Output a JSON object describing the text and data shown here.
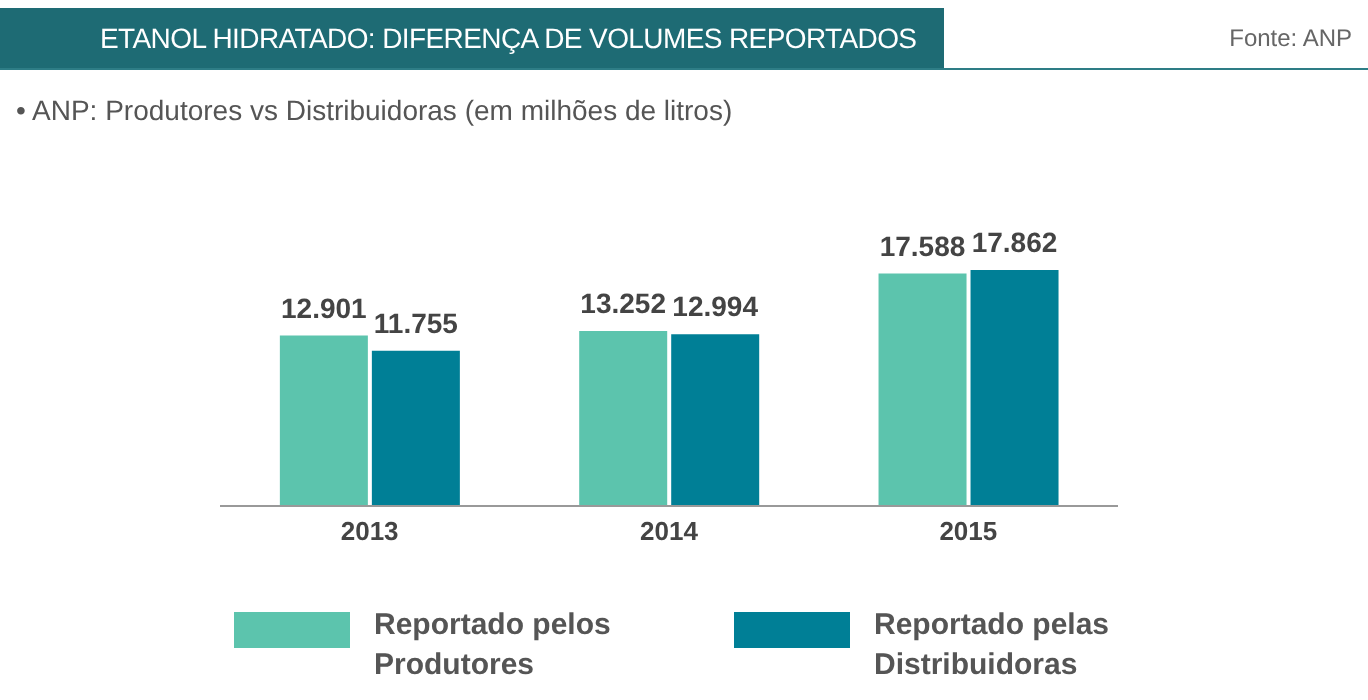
{
  "chart_data": {
    "type": "bar",
    "title": "ETANOL HIDRATADO: DIFERENÇA DE VOLUMES REPORTADOS",
    "subtitle": "• ANP: Produtores vs Distribuidoras (em milhões de litros)",
    "annotations": [
      "Fonte: ANP"
    ],
    "categories": [
      "2013",
      "2014",
      "2015"
    ],
    "series": [
      {
        "name": "Reportado pelos Produtores",
        "color": "#5cc4ad",
        "values": [
          12901,
          13252,
          17588
        ],
        "value_labels": [
          "12.901",
          "13.252",
          "17.588"
        ]
      },
      {
        "name": "Reportado pelas Distribuidoras",
        "color": "#007f96",
        "values": [
          11755,
          12994,
          17862
        ],
        "value_labels": [
          "11.755",
          "12.994",
          "17.862"
        ]
      }
    ],
    "legend": "bottom",
    "grid": false
  }
}
